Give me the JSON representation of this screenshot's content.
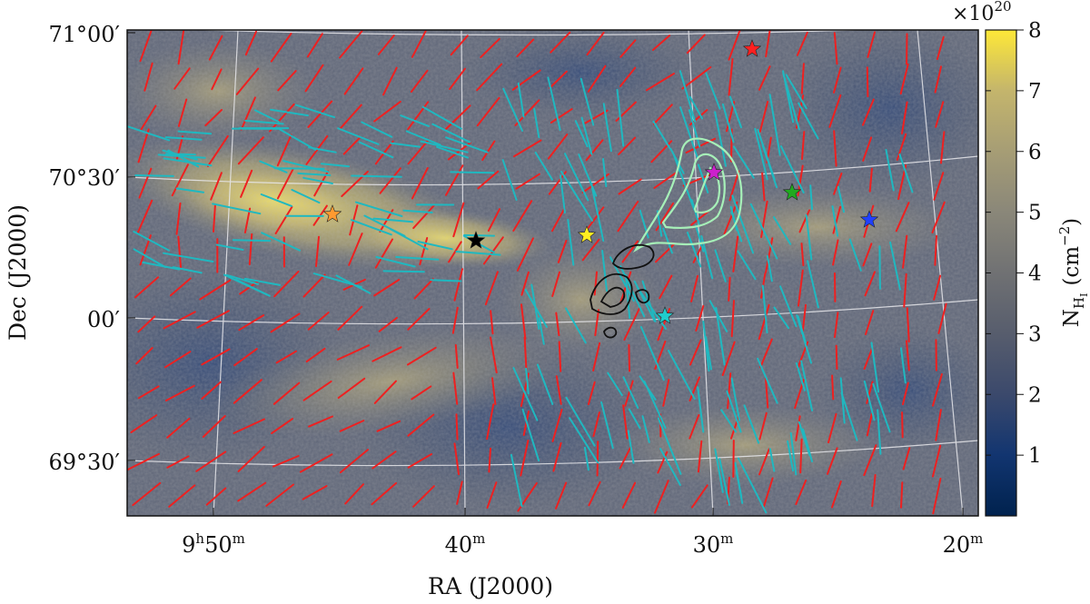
{
  "figure": {
    "xlabel": "RA (J2000)",
    "ylabel": "Dec (J2000)",
    "colorbar_label_main": "N",
    "colorbar_label_sub": "H",
    "colorbar_label_subsub": "I",
    "colorbar_label_unit": "(cm",
    "colorbar_label_exp": "−2",
    "colorbar_label_close": ")",
    "colorbar_multiplier_base": "×10",
    "colorbar_multiplier_exp": "20"
  },
  "chart_data": {
    "type": "heatmap",
    "colormap": "cividis",
    "colorbar_range": [
      0,
      8
    ],
    "colorbar_ticks": [
      "1",
      "2",
      "3",
      "4",
      "5",
      "6",
      "7",
      "8"
    ],
    "ra_ticks": [
      {
        "h": "9",
        "hu": "h",
        "m": "50",
        "mu": "m"
      },
      {
        "h": "",
        "hu": "",
        "m": "40",
        "mu": "m"
      },
      {
        "h": "",
        "hu": "",
        "m": "30",
        "mu": "m"
      },
      {
        "h": "",
        "hu": "",
        "m": "20",
        "mu": "m"
      }
    ],
    "dec_ticks": [
      {
        "deg": "71°",
        "min": "00′"
      },
      {
        "deg": "70°",
        "min": "30′"
      },
      {
        "deg": "",
        "min": "00′"
      },
      {
        "deg": "69°",
        "min": "30′"
      }
    ],
    "grid": true,
    "vector_sets": [
      "red polarization segments",
      "cyan polarization segments"
    ],
    "contour_sets": [
      "black contours",
      "light green contours"
    ],
    "markers": [
      {
        "shape": "star",
        "color": "#ff2020"
      },
      {
        "shape": "star",
        "color": "#ff9a30"
      },
      {
        "shape": "star",
        "color": "#000000"
      },
      {
        "shape": "star",
        "color": "#ffee20"
      },
      {
        "shape": "star",
        "color": "#20cccc"
      },
      {
        "shape": "star",
        "color": "#cc20cc"
      },
      {
        "shape": "star",
        "color": "#20aa20"
      },
      {
        "shape": "star",
        "color": "#2040ff"
      }
    ]
  }
}
